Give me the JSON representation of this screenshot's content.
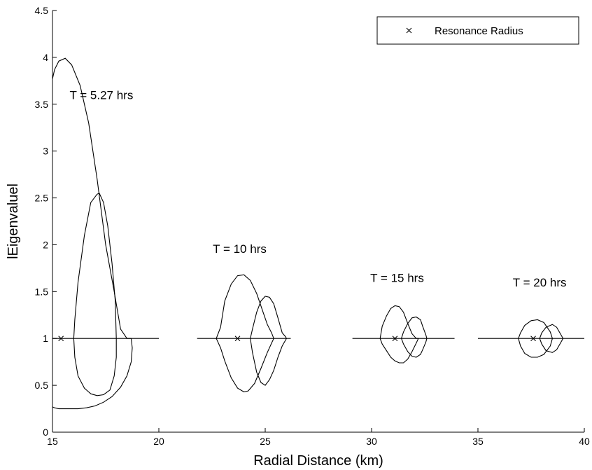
{
  "chart_data": {
    "type": "line",
    "title": "",
    "xlabel": "Radial Distance (km)",
    "ylabel": "lEigenvaluel",
    "xlim": [
      15,
      40
    ],
    "ylim": [
      0,
      4.5
    ],
    "xticks": [
      15,
      20,
      25,
      30,
      35,
      40
    ],
    "xtick_labels": [
      "15",
      "20",
      "25",
      "30",
      "35",
      "40"
    ],
    "yticks": [
      0,
      0.5,
      1,
      1.5,
      2,
      2.5,
      3,
      3.5,
      4,
      4.5
    ],
    "ytick_labels": [
      "0",
      "0.5",
      "1",
      "1.5",
      "2",
      "2.5",
      "3",
      "3.5",
      "4",
      "4.5"
    ],
    "grid": false,
    "legend": {
      "position": "top-right",
      "entries": [
        {
          "marker": "x",
          "label": "Resonance Radius"
        }
      ]
    },
    "annotations": [
      {
        "text": "T = 5.27 hrs",
        "x": 17.3,
        "y": 3.6
      },
      {
        "text": "T = 10 hrs",
        "x": 23.8,
        "y": 1.96
      },
      {
        "text": "T = 15 hrs",
        "x": 31.2,
        "y": 1.65
      },
      {
        "text": "T = 20 hrs",
        "x": 37.9,
        "y": 1.6
      }
    ],
    "resonance_radius": [
      {
        "x": 15.4,
        "y": 1
      },
      {
        "x": 23.7,
        "y": 1
      },
      {
        "x": 31.1,
        "y": 1
      },
      {
        "x": 37.6,
        "y": 1
      }
    ],
    "groups": [
      {
        "period": "T = 5.27 hrs",
        "baseline": [
          15.0,
          20.0
        ],
        "curves": [
          {
            "x": [
              15.0,
              15.1,
              15.3,
              15.6,
              15.9,
              16.3,
              16.7,
              17.1,
              17.5,
              17.9,
              18.2,
              18.5,
              18.7,
              18.75,
              18.7,
              18.5,
              18.2,
              17.8,
              17.4,
              17.0,
              16.6,
              16.2,
              15.9,
              15.6,
              15.3,
              15.1,
              15.0
            ],
            "y": [
              3.77,
              3.87,
              3.96,
              3.99,
              3.92,
              3.7,
              3.3,
              2.7,
              2.0,
              1.5,
              1.1,
              1.0,
              1.0,
              0.9,
              0.75,
              0.6,
              0.48,
              0.38,
              0.32,
              0.28,
              0.26,
              0.25,
              0.25,
              0.25,
              0.25,
              0.26,
              0.27
            ]
          },
          {
            "x": [
              17.1,
              16.8,
              16.5,
              16.2,
              16.05,
              16.0,
              16.05,
              16.2,
              16.5,
              16.8,
              17.1,
              17.4,
              17.7,
              17.9,
              18.0,
              18.0,
              17.95,
              17.8,
              17.6,
              17.4,
              17.2,
              17.1
            ],
            "y": [
              2.54,
              2.45,
              2.1,
              1.6,
              1.2,
              1.0,
              0.8,
              0.6,
              0.47,
              0.41,
              0.39,
              0.4,
              0.45,
              0.6,
              0.8,
              1.0,
              1.4,
              1.8,
              2.2,
              2.45,
              2.55,
              2.54
            ]
          }
        ]
      },
      {
        "period": "T = 10 hrs",
        "baseline": [
          21.8,
          26.2
        ],
        "curves": [
          {
            "x": [
              22.7,
              22.9,
              23.1,
              23.4,
              23.7,
              24.0,
              24.3,
              24.6,
              24.9,
              25.1,
              25.3,
              25.4,
              25.3,
              25.1,
              24.8,
              24.5,
              24.2,
              24.0,
              23.7,
              23.4,
              23.1,
              22.9,
              22.7
            ],
            "y": [
              1.0,
              1.12,
              1.4,
              1.58,
              1.67,
              1.68,
              1.62,
              1.48,
              1.28,
              1.15,
              1.06,
              1.0,
              0.95,
              0.85,
              0.68,
              0.52,
              0.44,
              0.43,
              0.47,
              0.58,
              0.76,
              0.9,
              1.0
            ]
          },
          {
            "x": [
              24.3,
              24.4,
              24.6,
              24.8,
              25.0,
              25.2,
              25.4,
              25.6,
              25.8,
              25.95,
              26.0,
              25.95,
              25.8,
              25.6,
              25.4,
              25.2,
              25.0,
              24.8,
              24.6,
              24.4,
              24.3
            ],
            "y": [
              1.0,
              1.1,
              1.28,
              1.4,
              1.45,
              1.44,
              1.37,
              1.22,
              1.06,
              1.02,
              1.0,
              0.98,
              0.92,
              0.8,
              0.66,
              0.56,
              0.5,
              0.53,
              0.64,
              0.85,
              1.0
            ]
          }
        ]
      },
      {
        "period": "T = 15 hrs",
        "baseline": [
          29.1,
          33.9
        ],
        "curves": [
          {
            "x": [
              30.4,
              30.5,
              30.7,
              30.9,
              31.1,
              31.3,
              31.5,
              31.7,
              31.9,
              32.1,
              32.2,
              32.1,
              31.9,
              31.7,
              31.5,
              31.3,
              31.1,
              30.9,
              30.7,
              30.5,
              30.4
            ],
            "y": [
              1.0,
              1.13,
              1.24,
              1.32,
              1.35,
              1.34,
              1.28,
              1.16,
              1.05,
              1.0,
              1.0,
              0.95,
              0.86,
              0.78,
              0.74,
              0.74,
              0.76,
              0.8,
              0.87,
              0.94,
              1.0
            ]
          },
          {
            "x": [
              31.4,
              31.5,
              31.7,
              31.9,
              32.1,
              32.3,
              32.4,
              32.55,
              32.6,
              32.55,
              32.4,
              32.3,
              32.1,
              31.9,
              31.7,
              31.5,
              31.4
            ],
            "y": [
              1.0,
              1.07,
              1.16,
              1.22,
              1.23,
              1.2,
              1.13,
              1.04,
              1.0,
              0.96,
              0.88,
              0.83,
              0.8,
              0.81,
              0.86,
              0.94,
              1.0
            ]
          }
        ]
      },
      {
        "period": "T = 20 hrs",
        "baseline": [
          35.0,
          40.0
        ],
        "curves": [
          {
            "x": [
              36.9,
              37.0,
              37.2,
              37.5,
              37.8,
              38.1,
              38.4,
              38.5,
              38.4,
              38.1,
              37.8,
              37.5,
              37.2,
              37.0,
              36.9
            ],
            "y": [
              1.0,
              1.06,
              1.14,
              1.19,
              1.2,
              1.17,
              1.07,
              1.0,
              0.92,
              0.83,
              0.8,
              0.8,
              0.84,
              0.92,
              1.0
            ]
          },
          {
            "x": [
              37.9,
              38.0,
              38.2,
              38.5,
              38.7,
              38.9,
              39.0,
              38.9,
              38.7,
              38.5,
              38.2,
              38.0,
              37.9
            ],
            "y": [
              1.0,
              1.06,
              1.12,
              1.15,
              1.12,
              1.04,
              1.0,
              0.96,
              0.88,
              0.85,
              0.87,
              0.94,
              1.0
            ]
          }
        ]
      }
    ]
  }
}
